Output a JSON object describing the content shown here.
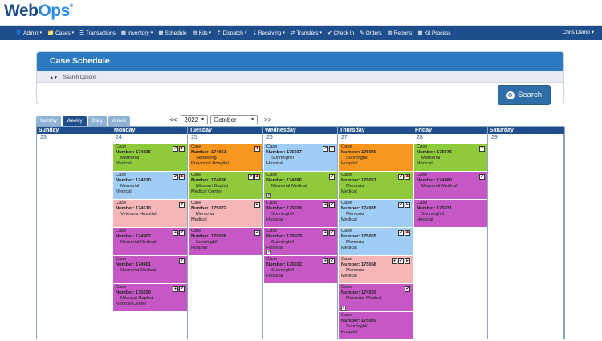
{
  "logo": {
    "text_main": "Web",
    "text_accent": "Ops",
    "mark": "®"
  },
  "nav": {
    "items": [
      {
        "label": "Admin",
        "icon": "person-icon",
        "glyph": "👤",
        "caret": true
      },
      {
        "label": "Cases",
        "icon": "folder-icon",
        "glyph": "📁",
        "caret": true
      },
      {
        "label": "Transactions",
        "icon": "list-icon",
        "glyph": "☰",
        "caret": false
      },
      {
        "label": "Inventory",
        "icon": "box-icon",
        "glyph": "▦",
        "caret": true
      },
      {
        "label": "Schedule",
        "icon": "calendar-icon",
        "glyph": "▦",
        "caret": false
      },
      {
        "label": "Kits",
        "icon": "kit-icon",
        "glyph": "▤",
        "caret": true
      },
      {
        "label": "Dispatch",
        "icon": "dispatch-icon",
        "glyph": "⇡",
        "caret": true
      },
      {
        "label": "Receiving",
        "icon": "download-icon",
        "glyph": "⇣",
        "caret": true
      },
      {
        "label": "Transfers",
        "icon": "transfer-icon",
        "glyph": "⇄",
        "caret": true
      },
      {
        "label": "Check In",
        "icon": "checkin-icon",
        "glyph": "✔",
        "caret": false
      },
      {
        "label": "Orders",
        "icon": "pencil-icon",
        "glyph": "✎",
        "caret": false
      },
      {
        "label": "Reports",
        "icon": "chart-icon",
        "glyph": "▥",
        "caret": false
      },
      {
        "label": "Kit Process",
        "icon": "process-icon",
        "glyph": "▦",
        "caret": false
      }
    ],
    "user": "Chris Demo",
    "user_caret": "▾"
  },
  "panel": {
    "title": "Case Schedule",
    "search_options": "Search Options",
    "search_options_icon": "▲▼",
    "search_button": "Search"
  },
  "tabs": [
    "Monthly",
    "Weekly",
    "Daily",
    "Arrival"
  ],
  "active_tab": "Weekly",
  "datenav": {
    "prev": "<<",
    "next": ">>",
    "year": "2022",
    "month": "October"
  },
  "calendar": {
    "days": [
      {
        "name": "Sunday",
        "num": "23"
      },
      {
        "name": "Monday",
        "num": "24"
      },
      {
        "name": "Tuesday",
        "num": "25"
      },
      {
        "name": "Wednesday",
        "num": "26"
      },
      {
        "name": "Thursday",
        "num": "27"
      },
      {
        "name": "Friday",
        "num": "28"
      },
      {
        "name": "Saturday",
        "num": "29"
      }
    ],
    "case_label": "Case",
    "number_label": "Number:",
    "columns": [
      [],
      [
        {
          "number": "174835",
          "location": [
            "Memorial",
            "Medical"
          ],
          "color": "green",
          "icons": [
            "check",
            "flag"
          ]
        },
        {
          "number": "174870",
          "location": [
            "Memorial",
            "Medical"
          ],
          "color": "blue",
          "icons": [
            "check",
            "flag"
          ]
        },
        {
          "number": "174510",
          "location": [
            "Veterans Hospital"
          ],
          "color": "pink",
          "icons": [
            "check"
          ]
        },
        {
          "number": "174902",
          "location": [
            "Memorial Medical"
          ],
          "color": "purple",
          "icons": [
            "circle",
            "check"
          ]
        },
        {
          "number": "174901",
          "location": [
            "Memorial Medical"
          ],
          "color": "purple",
          "icons": [
            "check"
          ]
        },
        {
          "number": "175020",
          "location": [
            "Missouri Baptist",
            "Medical Center"
          ],
          "color": "purple",
          "icons": [
            "circle",
            "check"
          ]
        }
      ],
      [
        {
          "number": "174961",
          "location": [
            "Sebokeng",
            "Provincial Hospital"
          ],
          "color": "orange",
          "icons": [
            "flag"
          ]
        },
        {
          "number": "174686",
          "location": [
            "Missouri Baptist",
            "Medical Center"
          ],
          "color": "green",
          "icons": [
            "check",
            "flag"
          ]
        },
        {
          "number": "175072",
          "location": [
            "Memorial",
            "Medical"
          ],
          "color": "pink",
          "icons": [
            "arrow"
          ]
        },
        {
          "number": "175026",
          "location": [
            "Sunninghill",
            "Hospital"
          ],
          "color": "purple",
          "icons": [
            "check"
          ]
        }
      ],
      [
        {
          "number": "175037",
          "location": [
            "Sunninghill",
            "Hospital"
          ],
          "color": "blue",
          "icons": [
            "check",
            "flag"
          ]
        },
        {
          "number": "174896",
          "location": [
            "Memorial Medical"
          ],
          "color": "green",
          "icons": [
            "check"
          ],
          "mini": "P"
        },
        {
          "number": "175029",
          "location": [
            "Sunninghill",
            "Hospital"
          ],
          "color": "purple",
          "icons": [
            "circle",
            "check"
          ]
        },
        {
          "number": "175033",
          "location": [
            "Sunninghill",
            "Hospital"
          ],
          "color": "purple",
          "icons": [
            "circle",
            "check"
          ],
          "mini": "P"
        },
        {
          "number": "175032",
          "location": [
            "Sunninghill",
            "Hospital"
          ],
          "color": "purple",
          "icons": [
            "circle",
            "check"
          ]
        }
      ],
      [
        {
          "number": "175030",
          "location": [
            "Sunninghill",
            "Hospital"
          ],
          "color": "orange",
          "icons": []
        },
        {
          "number": "175021",
          "location": [
            "Memorial",
            "Medical"
          ],
          "color": "green",
          "icons": [
            "check",
            "flag"
          ]
        },
        {
          "number": "174985",
          "location": [
            "Memorial",
            "Medical"
          ],
          "color": "blue",
          "icons": [
            "check",
            "arrow"
          ]
        },
        {
          "number": "175065",
          "location": [
            "Memorial",
            "Medical"
          ],
          "color": "blue",
          "icons": [
            "check",
            "flag"
          ]
        },
        {
          "number": "175058",
          "location": [
            "Memorial",
            "Medical"
          ],
          "color": "pink",
          "icons": [
            "circle",
            "check",
            "arrow"
          ]
        },
        {
          "number": "174959",
          "location": [
            "Memorial Medical"
          ],
          "color": "purple",
          "icons": [
            "check"
          ],
          "mini": "P"
        },
        {
          "number": "175089",
          "location": [
            "Sunninghill",
            "Hospital"
          ],
          "color": "purple",
          "icons": []
        }
      ],
      [
        {
          "number": "175076",
          "location": [
            "Memorial",
            "Medical"
          ],
          "color": "green",
          "icons": [
            "flag"
          ]
        },
        {
          "number": "174960",
          "location": [
            "Memorial Medical"
          ],
          "color": "purple",
          "icons": [
            "check"
          ]
        },
        {
          "number": "175031",
          "location": [
            "Sunninghill",
            "Hospital"
          ],
          "color": "purple",
          "icons": []
        }
      ],
      []
    ]
  },
  "glyphs": {
    "check": "✔",
    "flag": "✚",
    "circle": "●",
    "arrow": "▸"
  }
}
